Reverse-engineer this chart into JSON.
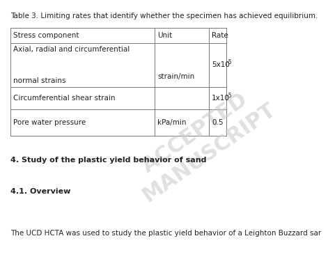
{
  "title": "Table 3. Limiting rates that identify whether the specimen has achieved equilibrium.",
  "headers": [
    "Stress component",
    "Unit",
    "Rate"
  ],
  "row1_line1": "Axial, radial and circumferential",
  "row1_line2": "normal strains",
  "row1_unit": "strain/min",
  "row1_rate_base": "5x10",
  "row1_rate_exp": "-5",
  "row2_stress": "Circumferential shear strain",
  "row2_rate_base": "1x10",
  "row2_rate_exp": "-5",
  "row3_stress": "Pore water pressure",
  "row3_unit": "kPa/min",
  "row3_rate": "0.5",
  "section_heading": "4. Study of the plastic yield behavior of sand",
  "subsection_heading": "4.1. Overview",
  "body_text": "The UCD HCTA was used to study the plastic yield behavior of a Leighton Buzzard sar",
  "watermark_line1": "ACCEPTED",
  "watermark_line2": "MANUSCRIPT",
  "bg_color": "#ffffff",
  "text_color": "#222222",
  "table_line_color": "#777777",
  "title_fontsize": 7.5,
  "cell_fontsize": 7.5,
  "section_fontsize": 8.0,
  "body_fontsize": 7.5,
  "watermark_color": "#cccccc",
  "watermark_fontsize": 22
}
